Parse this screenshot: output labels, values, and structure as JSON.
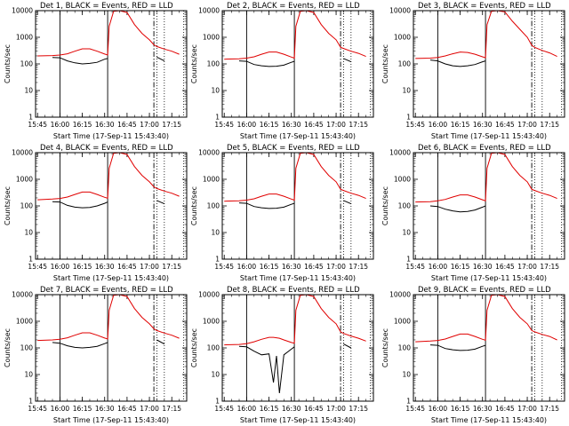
{
  "colors": {
    "events": "#000000",
    "lld": "#e00000",
    "background": "#ffffff"
  },
  "x_tick_labels": [
    "15:45",
    "16:00",
    "16:15",
    "16:30",
    "16:45",
    "17:00",
    "17:15"
  ],
  "y_tick_labels": [
    "1",
    "10",
    "100",
    "1000",
    "10000"
  ],
  "chart_data": [
    {
      "type": "line",
      "title": "Det 1, BLACK = Events, RED = LLD",
      "xlabel": "Start Time (17-Sep-11 15:43:40)",
      "ylabel": "Counts/sec",
      "yscale": "log",
      "xlim": [
        "15:43:40",
        "17:25:00"
      ],
      "ylim": [
        1,
        10000
      ],
      "xticks": [
        "15:45",
        "16:00",
        "16:15",
        "16:30",
        "16:45",
        "17:00",
        "17:15"
      ],
      "vlines_solid": [
        "16:00",
        "16:32"
      ],
      "vline_dashdot": "17:03",
      "vlines_dotted": [
        "17:05",
        "17:10",
        "17:23"
      ],
      "x": [
        "15:45",
        "15:55",
        "16:00",
        "16:05",
        "16:10",
        "16:15",
        "16:20",
        "16:25",
        "16:30",
        "16:32",
        "16:33",
        "16:36",
        "16:40",
        "16:45",
        "16:50",
        "16:55",
        "17:00",
        "17:03",
        "17:05",
        "17:10",
        "17:15",
        "17:20"
      ],
      "series": [
        {
          "name": "LLD",
          "values": [
            200,
            205,
            215,
            240,
            300,
            370,
            370,
            300,
            235,
            215,
            2600,
            9500,
            10000,
            8500,
            3000,
            1400,
            800,
            520,
            450,
            360,
            300,
            230
          ]
        },
        {
          "name": "Events",
          "values": [
            null,
            175,
            170,
            130,
            110,
            100,
            105,
            115,
            150,
            160,
            null,
            null,
            null,
            null,
            null,
            null,
            null,
            null,
            180,
            130,
            null,
            null
          ]
        }
      ]
    },
    {
      "type": "line",
      "title": "Det 2, BLACK = Events, RED = LLD",
      "xlabel": "Start Time (17-Sep-11 15:43:40)",
      "ylabel": "Counts/sec",
      "yscale": "log",
      "xlim": [
        "15:43:40",
        "17:25:00"
      ],
      "ylim": [
        1,
        10000
      ],
      "xticks": [
        "15:45",
        "16:00",
        "16:15",
        "16:30",
        "16:45",
        "17:00",
        "17:15"
      ],
      "vlines_solid": [
        "16:00",
        "16:32"
      ],
      "vline_dashdot": "17:03",
      "vlines_dotted": [
        "17:05",
        "17:10",
        "17:23"
      ],
      "x": [
        "15:45",
        "15:55",
        "16:00",
        "16:05",
        "16:10",
        "16:15",
        "16:20",
        "16:25",
        "16:30",
        "16:32",
        "16:33",
        "16:36",
        "16:40",
        "16:45",
        "16:50",
        "16:55",
        "17:00",
        "17:03",
        "17:05",
        "17:10",
        "17:15",
        "17:20"
      ],
      "series": [
        {
          "name": "LLD",
          "values": [
            150,
            155,
            165,
            185,
            230,
            280,
            280,
            230,
            180,
            165,
            2600,
            9500,
            10000,
            8500,
            3000,
            1400,
            800,
            420,
            380,
            300,
            250,
            190
          ]
        },
        {
          "name": "Events",
          "values": [
            null,
            130,
            125,
            95,
            85,
            80,
            82,
            90,
            115,
            125,
            null,
            null,
            null,
            null,
            null,
            null,
            null,
            null,
            160,
            120,
            null,
            null
          ]
        }
      ]
    },
    {
      "type": "line",
      "title": "Det 3, BLACK = Events, RED = LLD",
      "xlabel": "Start Time (17-Sep-11 15:43:40)",
      "ylabel": "Counts/sec",
      "yscale": "log",
      "xlim": [
        "15:43:40",
        "17:25:00"
      ],
      "ylim": [
        1,
        10000
      ],
      "xticks": [
        "15:45",
        "16:00",
        "16:15",
        "16:30",
        "16:45",
        "17:00",
        "17:15"
      ],
      "vlines_solid": [
        "16:00",
        "16:32"
      ],
      "vline_dashdot": "17:03",
      "vlines_dotted": [
        "17:05",
        "17:10",
        "17:23"
      ],
      "x": [
        "15:45",
        "15:55",
        "16:00",
        "16:05",
        "16:10",
        "16:15",
        "16:20",
        "16:25",
        "16:30",
        "16:32",
        "16:33",
        "16:36",
        "16:40",
        "16:45",
        "16:50",
        "16:55",
        "17:00",
        "17:03",
        "17:05",
        "17:10",
        "17:15",
        "17:20"
      ],
      "series": [
        {
          "name": "LLD",
          "values": [
            160,
            165,
            175,
            200,
            240,
            280,
            270,
            230,
            185,
            170,
            3000,
            9500,
            10000,
            9000,
            4000,
            2000,
            1000,
            500,
            420,
            320,
            260,
            190
          ]
        },
        {
          "name": "Events",
          "values": [
            null,
            140,
            130,
            100,
            85,
            80,
            85,
            95,
            120,
            130,
            null,
            null,
            null,
            null,
            null,
            null,
            null,
            null,
            null,
            null,
            null,
            null
          ]
        }
      ]
    },
    {
      "type": "line",
      "title": "Det 4, BLACK = Events, RED = LLD",
      "xlabel": "Start Time (17-Sep-11 15:43:40)",
      "ylabel": "Counts/sec",
      "yscale": "log",
      "xlim": [
        "15:43:40",
        "17:25:00"
      ],
      "ylim": [
        1,
        10000
      ],
      "xticks": [
        "15:45",
        "16:00",
        "16:15",
        "16:30",
        "16:45",
        "17:00",
        "17:15"
      ],
      "vlines_solid": [
        "16:00",
        "16:32"
      ],
      "vline_dashdot": "17:03",
      "vlines_dotted": [
        "17:05",
        "17:10",
        "17:23"
      ],
      "x": [
        "15:45",
        "15:55",
        "16:00",
        "16:05",
        "16:10",
        "16:15",
        "16:20",
        "16:25",
        "16:30",
        "16:32",
        "16:33",
        "16:36",
        "16:40",
        "16:45",
        "16:50",
        "16:55",
        "17:00",
        "17:03",
        "17:05",
        "17:10",
        "17:15",
        "17:20"
      ],
      "series": [
        {
          "name": "LLD",
          "values": [
            170,
            180,
            190,
            215,
            270,
            330,
            330,
            270,
            210,
            195,
            2600,
            9500,
            10000,
            8500,
            3000,
            1400,
            800,
            520,
            450,
            360,
            300,
            230
          ]
        },
        {
          "name": "Events",
          "values": [
            null,
            145,
            140,
            105,
            90,
            85,
            88,
            100,
            125,
            140,
            null,
            null,
            null,
            null,
            null,
            null,
            null,
            null,
            160,
            120,
            null,
            null
          ]
        }
      ]
    },
    {
      "type": "line",
      "title": "Det 5, BLACK = Events, RED = LLD",
      "xlabel": "Start Time (17-Sep-11 15:43:40)",
      "ylabel": "Counts/sec",
      "yscale": "log",
      "xlim": [
        "15:43:40",
        "17:25:00"
      ],
      "ylim": [
        1,
        10000
      ],
      "xticks": [
        "15:45",
        "16:00",
        "16:15",
        "16:30",
        "16:45",
        "17:00",
        "17:15"
      ],
      "vlines_solid": [
        "16:00",
        "16:32"
      ],
      "vline_dashdot": "17:03",
      "vlines_dotted": [
        "17:05",
        "17:10",
        "17:23"
      ],
      "x": [
        "15:45",
        "15:55",
        "16:00",
        "16:05",
        "16:10",
        "16:15",
        "16:20",
        "16:25",
        "16:30",
        "16:32",
        "16:33",
        "16:36",
        "16:40",
        "16:45",
        "16:50",
        "16:55",
        "17:00",
        "17:03",
        "17:05",
        "17:10",
        "17:15",
        "17:20"
      ],
      "series": [
        {
          "name": "LLD",
          "values": [
            150,
            155,
            165,
            185,
            230,
            280,
            280,
            230,
            180,
            165,
            2600,
            9500,
            10000,
            8500,
            3000,
            1400,
            800,
            420,
            380,
            300,
            250,
            190
          ]
        },
        {
          "name": "Events",
          "values": [
            null,
            130,
            125,
            95,
            85,
            80,
            82,
            90,
            115,
            125,
            null,
            null,
            null,
            null,
            null,
            null,
            null,
            null,
            160,
            120,
            null,
            null
          ]
        }
      ]
    },
    {
      "type": "line",
      "title": "Det 6, BLACK = Events, RED = LLD",
      "xlabel": "Start Time (17-Sep-11 15:43:40)",
      "ylabel": "Counts/sec",
      "yscale": "log",
      "xlim": [
        "15:43:40",
        "17:25:00"
      ],
      "ylim": [
        1,
        10000
      ],
      "xticks": [
        "15:45",
        "16:00",
        "16:15",
        "16:30",
        "16:45",
        "17:00",
        "17:15"
      ],
      "vlines_solid": [
        "16:00",
        "16:32"
      ],
      "vline_dashdot": "17:03",
      "vlines_dotted": [
        "17:05",
        "17:10",
        "17:23"
      ],
      "x": [
        "15:45",
        "15:55",
        "16:00",
        "16:05",
        "16:10",
        "16:15",
        "16:20",
        "16:25",
        "16:30",
        "16:32",
        "16:33",
        "16:36",
        "16:40",
        "16:45",
        "16:50",
        "16:55",
        "17:00",
        "17:03",
        "17:05",
        "17:10",
        "17:15",
        "17:20"
      ],
      "series": [
        {
          "name": "LLD",
          "values": [
            140,
            145,
            155,
            175,
            215,
            260,
            260,
            215,
            170,
            155,
            2600,
            9500,
            10000,
            8500,
            3000,
            1400,
            800,
            420,
            380,
            300,
            250,
            190
          ]
        },
        {
          "name": "Events",
          "values": [
            null,
            100,
            95,
            75,
            65,
            60,
            62,
            70,
            90,
            100,
            null,
            null,
            null,
            null,
            null,
            null,
            null,
            null,
            null,
            null,
            null,
            null
          ]
        }
      ]
    },
    {
      "type": "line",
      "title": "Det 7, BLACK = Events, RED = LLD",
      "xlabel": "Start Time (17-Sep-11 15:43:40)",
      "ylabel": "Counts/sec",
      "yscale": "log",
      "xlim": [
        "15:43:40",
        "17:25:00"
      ],
      "ylim": [
        1,
        10000
      ],
      "xticks": [
        "15:45",
        "16:00",
        "16:15",
        "16:30",
        "16:45",
        "17:00",
        "17:15"
      ],
      "vlines_solid": [
        "16:00",
        "16:32"
      ],
      "vline_dashdot": "17:03",
      "vlines_dotted": [
        "17:05",
        "17:10",
        "17:23"
      ],
      "x": [
        "15:45",
        "15:55",
        "16:00",
        "16:05",
        "16:10",
        "16:15",
        "16:20",
        "16:25",
        "16:30",
        "16:32",
        "16:33",
        "16:36",
        "16:40",
        "16:45",
        "16:50",
        "16:55",
        "17:00",
        "17:03",
        "17:05",
        "17:10",
        "17:15",
        "17:20"
      ],
      "series": [
        {
          "name": "LLD",
          "values": [
            190,
            200,
            210,
            240,
            300,
            370,
            370,
            300,
            235,
            215,
            2600,
            9500,
            10000,
            8500,
            3000,
            1400,
            800,
            520,
            450,
            360,
            300,
            230
          ]
        },
        {
          "name": "Events",
          "values": [
            null,
            160,
            150,
            120,
            105,
            100,
            105,
            115,
            145,
            160,
            null,
            null,
            null,
            null,
            null,
            null,
            null,
            null,
            200,
            140,
            null,
            null
          ]
        }
      ]
    },
    {
      "type": "line",
      "title": "Det 8, BLACK = Events, RED = LLD",
      "xlabel": "Start Time (17-Sep-11 15:43:40)",
      "ylabel": "Counts/sec",
      "yscale": "log",
      "xlim": [
        "15:43:40",
        "17:25:00"
      ],
      "ylim": [
        1,
        10000
      ],
      "xticks": [
        "15:45",
        "16:00",
        "16:15",
        "16:30",
        "16:45",
        "17:00",
        "17:15"
      ],
      "vlines_solid": [
        "16:00",
        "16:32"
      ],
      "vline_dashdot": "17:03",
      "vlines_dotted": [
        "17:05",
        "17:10",
        "17:23"
      ],
      "x": [
        "15:45",
        "15:55",
        "16:00",
        "16:05",
        "16:10",
        "16:15",
        "16:18",
        "16:20",
        "16:22",
        "16:25",
        "16:30",
        "16:32",
        "16:33",
        "16:36",
        "16:40",
        "16:45",
        "16:50",
        "16:55",
        "17:00",
        "17:03",
        "17:05",
        "17:10",
        "17:15",
        "17:20"
      ],
      "series": [
        {
          "name": "LLD",
          "values": [
            130,
            135,
            145,
            170,
            210,
            250,
            250,
            240,
            230,
            200,
            160,
            150,
            2600,
            9500,
            10000,
            8500,
            3000,
            1400,
            800,
            400,
            350,
            280,
            230,
            180
          ]
        },
        {
          "name": "Events",
          "values": [
            null,
            115,
            110,
            75,
            55,
            60,
            5,
            50,
            2,
            55,
            90,
            110,
            null,
            null,
            null,
            null,
            null,
            null,
            null,
            null,
            140,
            100,
            null,
            null
          ]
        }
      ]
    },
    {
      "type": "line",
      "title": "Det 9, BLACK = Events, RED = LLD",
      "xlabel": "Start Time (17-Sep-11 15:43:40)",
      "ylabel": "Counts/sec",
      "yscale": "log",
      "xlim": [
        "15:43:40",
        "17:25:00"
      ],
      "ylim": [
        1,
        10000
      ],
      "xticks": [
        "15:45",
        "16:00",
        "16:15",
        "16:30",
        "16:45",
        "17:00",
        "17:15"
      ],
      "vlines_solid": [
        "16:00",
        "16:32"
      ],
      "vline_dashdot": "17:03",
      "vlines_dotted": [
        "17:05",
        "17:10",
        "17:23"
      ],
      "x": [
        "15:45",
        "15:55",
        "16:00",
        "16:05",
        "16:10",
        "16:15",
        "16:20",
        "16:25",
        "16:30",
        "16:32",
        "16:33",
        "16:36",
        "16:40",
        "16:45",
        "16:50",
        "16:55",
        "17:00",
        "17:03",
        "17:05",
        "17:10",
        "17:15",
        "17:20"
      ],
      "series": [
        {
          "name": "LLD",
          "values": [
            170,
            180,
            190,
            215,
            270,
            330,
            330,
            270,
            210,
            195,
            2600,
            9500,
            10000,
            8500,
            3000,
            1400,
            800,
            450,
            400,
            320,
            270,
            200
          ]
        },
        {
          "name": "Events",
          "values": [
            null,
            130,
            125,
            95,
            85,
            80,
            82,
            90,
            115,
            125,
            null,
            null,
            null,
            null,
            null,
            null,
            null,
            null,
            null,
            null,
            null,
            null
          ]
        }
      ]
    }
  ]
}
